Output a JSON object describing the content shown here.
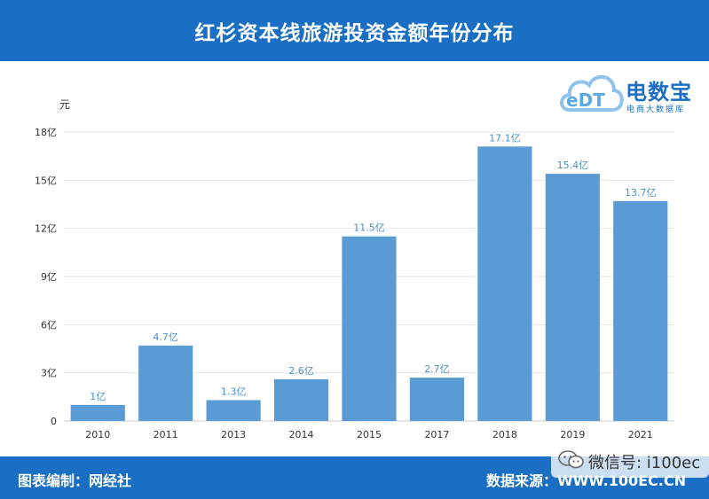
{
  "header": {
    "title": "红杉资本线旅游投资金额年份分布"
  },
  "logo": {
    "main": "电数宝",
    "sub": "电商大数据库",
    "mark": "eDT"
  },
  "footer": {
    "left": "图表编制：网经社",
    "right": "数据来源：WWW.100EC.CN"
  },
  "watermark": {
    "text": "微信号: i100ec",
    "icon": "wechat-icon"
  },
  "colors": {
    "header": "#1a6fc4",
    "bar": "#5b9bd5",
    "label": "#4a90c8",
    "axis": "#333333"
  },
  "chart_data": {
    "type": "bar",
    "unit_label": "元",
    "categories": [
      "2010",
      "2011",
      "2013",
      "2014",
      "2015",
      "2017",
      "2018",
      "2019",
      "2021"
    ],
    "values": [
      1,
      4.7,
      1.3,
      2.6,
      11.5,
      2.7,
      17.1,
      15.4,
      13.7
    ],
    "data_labels": [
      "1亿",
      "4.7亿",
      "1.3亿",
      "2.6亿",
      "11.5亿",
      "2.7亿",
      "17.1亿",
      "15.4亿",
      "13.7亿"
    ],
    "yticks": [
      0,
      3,
      6,
      9,
      12,
      15,
      18
    ],
    "ytick_labels": [
      "0",
      "3亿",
      "6亿",
      "9亿",
      "12亿",
      "15亿",
      "18亿"
    ],
    "ylim": [
      0,
      18
    ],
    "grid": true,
    "legend": false
  }
}
